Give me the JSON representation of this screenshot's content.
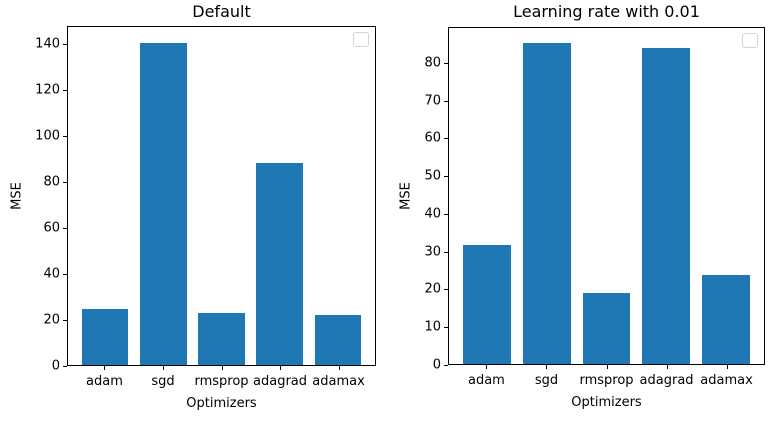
{
  "figure": {
    "background": "#ffffff",
    "kind": "matplotlib-figure"
  },
  "chart_data": [
    {
      "type": "bar",
      "title": "Default",
      "xlabel": "Optimizers",
      "ylabel": "MSE",
      "categories": [
        "adam",
        "sgd",
        "rmsprop",
        "adagrad",
        "adamax"
      ],
      "values": [
        24.5,
        140.5,
        22.5,
        88.0,
        22.0
      ],
      "yticks": [
        0,
        20,
        40,
        60,
        80,
        100,
        120,
        140
      ],
      "ylim": [
        0,
        147.6
      ],
      "bar_color": "#1f77b4",
      "grid": false,
      "legend": {
        "visible": true,
        "entries": [],
        "position": "upper right"
      }
    },
    {
      "type": "bar",
      "title": "Learning rate with 0.01",
      "xlabel": "Optimizers",
      "ylabel": "MSE",
      "categories": [
        "adam",
        "sgd",
        "rmsprop",
        "adagrad",
        "adamax"
      ],
      "values": [
        31.6,
        85.4,
        19.0,
        84.2,
        23.6
      ],
      "yticks": [
        0,
        10,
        20,
        30,
        40,
        50,
        60,
        70,
        80
      ],
      "ylim": [
        0,
        89.5
      ],
      "bar_color": "#1f77b4",
      "grid": false,
      "legend": {
        "visible": true,
        "entries": [],
        "position": "upper right"
      }
    }
  ]
}
